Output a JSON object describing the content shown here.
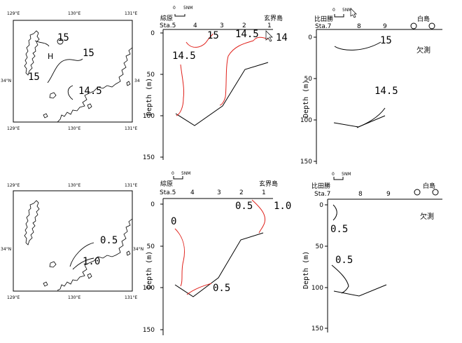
{
  "maps": [
    {
      "lat_left": "34°N",
      "lat_right": "34",
      "lon_top": [
        "129°E",
        "130°E",
        "131°E"
      ],
      "lon_bottom": [
        "129°E",
        "130°E",
        "131°E"
      ],
      "labels": [
        "15",
        "15",
        "H",
        "15",
        "14.5"
      ]
    },
    {
      "lat_left": "34°N",
      "lat_right": "34°N",
      "lon_top": [
        "129°E",
        "130°E",
        "131°E"
      ],
      "lon_bottom": [
        "129°E",
        "130°E",
        "131°E"
      ],
      "labels": [
        "0.5",
        "1.0"
      ]
    }
  ],
  "sections": [
    {
      "scale": "5NM",
      "west_place": "綜原",
      "east_place": "玄界島",
      "stations": [
        "Sta.5",
        "4",
        "3",
        "2",
        "1"
      ],
      "depth_ticks": [
        "0",
        "50",
        "100",
        "150"
      ],
      "ylabel": "Depth (m)",
      "labels": [
        "15",
        "14.5",
        "14",
        "14.5"
      ]
    },
    {
      "scale": "5NM",
      "west_place": "比田勝",
      "east_place": "白島",
      "stations": [
        "Sta.7",
        "8",
        "9"
      ],
      "depth_ticks": [
        "0",
        "50",
        "100",
        "150"
      ],
      "ylabel": "Depth (m)",
      "labels": [
        "15",
        "14.5"
      ],
      "note": "欠測"
    },
    {
      "scale": "5NM",
      "west_place": "綜原",
      "east_place": "玄界島",
      "stations": [
        "Sta.5",
        "4",
        "3",
        "2",
        "1"
      ],
      "depth_ticks": [
        "0",
        "50",
        "100",
        "150"
      ],
      "ylabel": "Depth (m)",
      "labels": [
        "0.5",
        "1.0",
        "0",
        "0.5"
      ]
    },
    {
      "scale": "5NM",
      "west_place": "比田勝",
      "east_place": "白島",
      "stations": [
        "Sta.7",
        "8",
        "9"
      ],
      "depth_ticks": [
        "0",
        "50",
        "100",
        "150"
      ],
      "ylabel": "Depth (m)",
      "labels": [
        "0.5",
        "0.5"
      ],
      "note": "欠測"
    }
  ]
}
